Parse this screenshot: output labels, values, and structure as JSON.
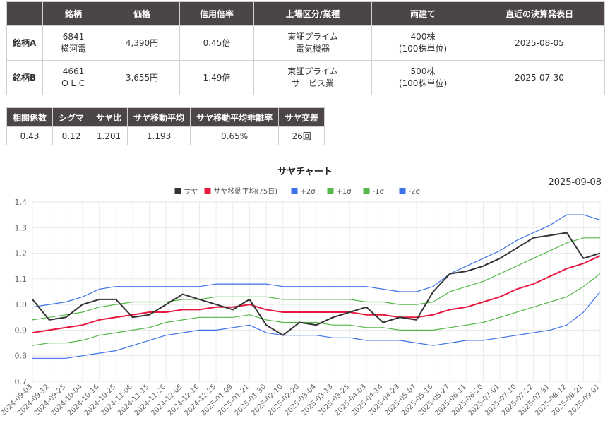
{
  "table": {
    "headers": [
      "",
      "銘柄",
      "価格",
      "信用倍率",
      "上場区分/業種",
      "両建て",
      "直近の決算発表日"
    ],
    "rows": [
      {
        "label": "銘柄A",
        "code": "6841",
        "name": "横河電",
        "price": "4,390円",
        "margin_ratio": "0.45倍",
        "market": "東証プライム",
        "industry": "電気機器",
        "shares": "400株",
        "unit": "(100株単位)",
        "earnings_date": "2025-08-05"
      },
      {
        "label": "銘柄B",
        "code": "4661",
        "name": "ＯＬＣ",
        "price": "3,655円",
        "margin_ratio": "1.49倍",
        "market": "東証プライム",
        "industry": "サービス業",
        "shares": "500株",
        "unit": "(100株単位)",
        "earnings_date": "2025-07-30"
      }
    ]
  },
  "stats": {
    "headers": [
      "相関係数",
      "シグマ",
      "サヤ比",
      "サヤ移動平均",
      "サヤ移動平均乖離率",
      "サヤ交差"
    ],
    "values": [
      "0.43",
      "0.12",
      "1.201",
      "1.193",
      "0.65%",
      "26回"
    ]
  },
  "chart_data": {
    "type": "line",
    "title": "サヤチャート",
    "date_label": "2025-09-08",
    "ylim": [
      0.7,
      1.4
    ],
    "yticks": [
      "0.7",
      "0.8",
      "0.9",
      "1.0",
      "1.1",
      "1.2",
      "1.3",
      "1.4"
    ],
    "grid": true,
    "legend_position": "top",
    "x": [
      "2024-09-03",
      "2024-09-12",
      "2024-09-25",
      "2024-10-04",
      "2024-10-16",
      "2024-10-25",
      "2024-11-06",
      "2024-11-15",
      "2024-11-26",
      "2024-12-05",
      "2024-12-16",
      "2024-12-25",
      "2025-01-09",
      "2025-01-21",
      "2025-01-30",
      "2025-02-10",
      "2025-02-20",
      "2025-03-04",
      "2025-03-13",
      "2025-03-25",
      "2025-04-03",
      "2025-04-14",
      "2025-04-23",
      "2025-05-07",
      "2025-05-16",
      "2025-05-27",
      "2025-06-11",
      "2025-06-20",
      "2025-07-01",
      "2025-07-10",
      "2025-07-22",
      "2025-07-31",
      "2025-08-12",
      "2025-08-21",
      "2025-09-01"
    ],
    "series": [
      {
        "name": "サヤ",
        "color": "#333333",
        "width": 2,
        "values": [
          1.02,
          0.94,
          0.95,
          1.0,
          1.02,
          1.02,
          0.95,
          0.96,
          1.0,
          1.04,
          1.02,
          1.0,
          0.98,
          1.02,
          0.92,
          0.88,
          0.93,
          0.92,
          0.95,
          0.97,
          0.99,
          0.93,
          0.95,
          0.94,
          1.05,
          1.12,
          1.13,
          1.15,
          1.18,
          1.22,
          1.26,
          1.27,
          1.28,
          1.18,
          1.2
        ]
      },
      {
        "name": "サヤ移動平均(75日)",
        "color": "#e8193e",
        "width": 2,
        "values": [
          0.89,
          0.9,
          0.91,
          0.92,
          0.94,
          0.95,
          0.96,
          0.97,
          0.97,
          0.98,
          0.98,
          0.99,
          0.99,
          1.0,
          0.98,
          0.97,
          0.97,
          0.97,
          0.97,
          0.97,
          0.96,
          0.96,
          0.95,
          0.95,
          0.96,
          0.98,
          0.99,
          1.01,
          1.03,
          1.06,
          1.08,
          1.11,
          1.14,
          1.16,
          1.19
        ]
      },
      {
        "name": "+2σ",
        "color": "#3d72e8",
        "width": 1.2,
        "values": [
          0.99,
          1.0,
          1.01,
          1.03,
          1.06,
          1.07,
          1.07,
          1.07,
          1.07,
          1.07,
          1.07,
          1.08,
          1.08,
          1.08,
          1.08,
          1.07,
          1.07,
          1.07,
          1.07,
          1.07,
          1.07,
          1.06,
          1.05,
          1.05,
          1.07,
          1.12,
          1.15,
          1.18,
          1.21,
          1.25,
          1.28,
          1.31,
          1.35,
          1.35,
          1.33
        ]
      },
      {
        "name": "+1σ",
        "color": "#56b84a",
        "width": 1.2,
        "values": [
          0.94,
          0.95,
          0.96,
          0.97,
          0.99,
          1.0,
          1.01,
          1.01,
          1.01,
          1.02,
          1.02,
          1.03,
          1.03,
          1.03,
          1.03,
          1.02,
          1.02,
          1.02,
          1.02,
          1.02,
          1.01,
          1.01,
          1.0,
          1.0,
          1.01,
          1.05,
          1.07,
          1.09,
          1.12,
          1.15,
          1.18,
          1.21,
          1.24,
          1.26,
          1.26
        ]
      },
      {
        "name": "-1σ",
        "color": "#56b84a",
        "width": 1.2,
        "values": [
          0.84,
          0.85,
          0.85,
          0.86,
          0.88,
          0.89,
          0.9,
          0.91,
          0.93,
          0.94,
          0.95,
          0.95,
          0.95,
          0.96,
          0.94,
          0.93,
          0.93,
          0.93,
          0.92,
          0.92,
          0.91,
          0.91,
          0.9,
          0.9,
          0.9,
          0.91,
          0.92,
          0.93,
          0.95,
          0.97,
          0.99,
          1.01,
          1.03,
          1.07,
          1.12
        ]
      },
      {
        "name": "-2σ",
        "color": "#3d72e8",
        "width": 1.2,
        "values": [
          0.79,
          0.79,
          0.79,
          0.8,
          0.81,
          0.82,
          0.84,
          0.86,
          0.88,
          0.89,
          0.9,
          0.9,
          0.91,
          0.92,
          0.89,
          0.88,
          0.88,
          0.88,
          0.87,
          0.87,
          0.86,
          0.86,
          0.86,
          0.85,
          0.84,
          0.85,
          0.86,
          0.86,
          0.87,
          0.88,
          0.89,
          0.9,
          0.92,
          0.97,
          1.05
        ]
      }
    ]
  }
}
